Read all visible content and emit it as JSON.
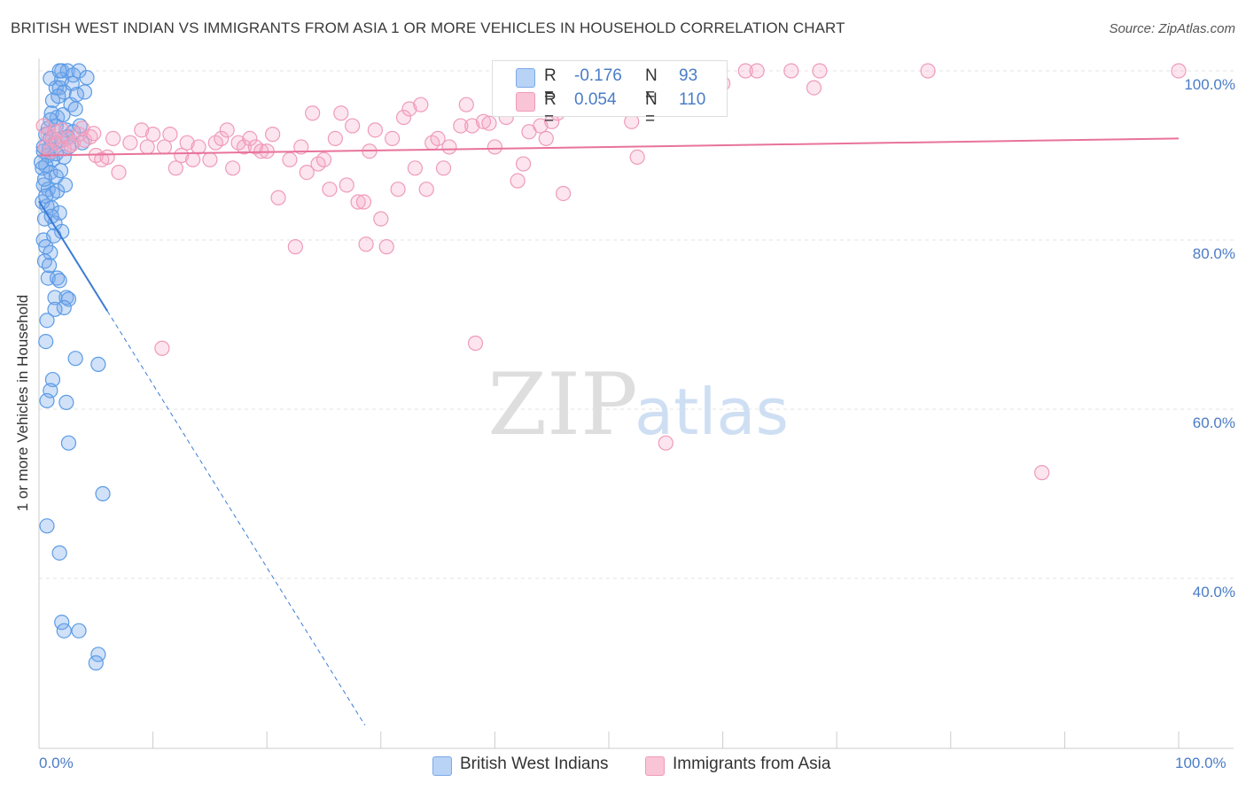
{
  "title": "BRITISH WEST INDIAN VS IMMIGRANTS FROM ASIA 1 OR MORE VEHICLES IN HOUSEHOLD CORRELATION CHART",
  "source": "Source: ZipAtlas.com",
  "watermark": {
    "zip": "ZIP",
    "atlas": "atlas"
  },
  "colors": {
    "blue": "#5b9be6",
    "blue_line": "#3a7bd5",
    "pink": "#f0a0be",
    "pink_line": "#e8739a",
    "tick": "#4a7cc7",
    "grid": "#e3e3e3"
  },
  "legend": {
    "r_label": "R =",
    "n_label": "N =",
    "series": [
      {
        "name": "British West Indians",
        "r": "-0.176",
        "n": "93"
      },
      {
        "name": "Immigrants from Asia",
        "r": "0.054",
        "n": "110"
      }
    ]
  },
  "chart_data": {
    "type": "scatter",
    "title": "BRITISH WEST INDIAN VS IMMIGRANTS FROM ASIA 1 OR MORE VEHICLES IN HOUSEHOLD CORRELATION CHART",
    "xlabel": "",
    "ylabel": "1 or more Vehicles in Household",
    "xlim": [
      0,
      100
    ],
    "ylim": [
      20,
      103
    ],
    "x_tick_labels": [
      "0.0%",
      "100.0%"
    ],
    "y_ticks": [
      40,
      60,
      80,
      100
    ],
    "y_tick_labels": [
      "40.0%",
      "60.0%",
      "80.0%",
      "100.0%"
    ],
    "series": [
      {
        "name": "British West Indians",
        "color": "#5b9be6",
        "trend": {
          "x0": 0,
          "y0": 84.6,
          "x1": 6,
          "y1": 71.6,
          "dash_x_end": 28.6
        },
        "points": [
          [
            1.0,
            99.1
          ],
          [
            1.5,
            98.0
          ],
          [
            2.0,
            100.0
          ],
          [
            2.5,
            100.0
          ],
          [
            3.0,
            99.5
          ],
          [
            3.5,
            100.0
          ],
          [
            4.0,
            97.5
          ],
          [
            2.0,
            99.0
          ],
          [
            1.2,
            96.5
          ],
          [
            1.8,
            98.0
          ],
          [
            2.2,
            97.5
          ],
          [
            2.8,
            96.0
          ],
          [
            3.2,
            95.5
          ],
          [
            1.6,
            94.5
          ],
          [
            2.4,
            93.0
          ],
          [
            3.6,
            93.5
          ],
          [
            0.6,
            92.5
          ],
          [
            1.0,
            92.0
          ],
          [
            1.4,
            91.5
          ],
          [
            2.0,
            91.8
          ],
          [
            0.4,
            90.5
          ],
          [
            0.8,
            90.0
          ],
          [
            1.2,
            89.5
          ],
          [
            2.2,
            89.8
          ],
          [
            0.3,
            88.5
          ],
          [
            0.6,
            88.8
          ],
          [
            1.0,
            88.0
          ],
          [
            1.5,
            87.5
          ],
          [
            0.4,
            86.5
          ],
          [
            0.8,
            86.0
          ],
          [
            1.2,
            85.5
          ],
          [
            1.6,
            85.8
          ],
          [
            0.3,
            84.5
          ],
          [
            0.7,
            84.0
          ],
          [
            1.1,
            83.8
          ],
          [
            1.8,
            83.2
          ],
          [
            0.5,
            82.5
          ],
          [
            1.4,
            82.0
          ],
          [
            2.0,
            81.0
          ],
          [
            0.4,
            80.0
          ],
          [
            0.6,
            79.2
          ],
          [
            1.0,
            78.5
          ],
          [
            0.5,
            77.5
          ],
          [
            0.8,
            75.5
          ],
          [
            1.6,
            75.5
          ],
          [
            1.8,
            75.2
          ],
          [
            1.4,
            73.2
          ],
          [
            2.4,
            73.2
          ],
          [
            2.6,
            73.0
          ],
          [
            2.2,
            72.0
          ],
          [
            1.4,
            71.8
          ],
          [
            0.7,
            70.5
          ],
          [
            0.6,
            68.0
          ],
          [
            3.2,
            66.0
          ],
          [
            5.2,
            65.3
          ],
          [
            1.2,
            63.5
          ],
          [
            1.0,
            62.2
          ],
          [
            0.7,
            61.0
          ],
          [
            2.4,
            60.8
          ],
          [
            2.6,
            56.0
          ],
          [
            5.6,
            50.0
          ],
          [
            0.7,
            46.2
          ],
          [
            1.8,
            43.0
          ],
          [
            2.0,
            34.8
          ],
          [
            2.2,
            33.8
          ],
          [
            3.5,
            33.8
          ],
          [
            5.2,
            31.0
          ],
          [
            5.0,
            30.0
          ],
          [
            1.5,
            93.5
          ],
          [
            2.5,
            92.2
          ],
          [
            0.9,
            90.8
          ],
          [
            1.9,
            88.2
          ],
          [
            2.3,
            86.5
          ],
          [
            0.5,
            87.2
          ],
          [
            1.3,
            80.5
          ],
          [
            0.9,
            77.0
          ],
          [
            3.0,
            92.8
          ],
          [
            1.1,
            95.0
          ],
          [
            4.2,
            99.2
          ],
          [
            2.9,
            98.5
          ],
          [
            1.7,
            97.0
          ],
          [
            0.8,
            93.2
          ],
          [
            2.1,
            94.8
          ],
          [
            3.8,
            91.5
          ],
          [
            0.2,
            89.2
          ],
          [
            1.5,
            90.2
          ],
          [
            0.6,
            85.2
          ],
          [
            1.1,
            82.8
          ],
          [
            2.6,
            91.0
          ],
          [
            1.0,
            94.2
          ],
          [
            3.3,
            97.2
          ],
          [
            0.4,
            91.0
          ],
          [
            1.8,
            100.0
          ]
        ]
      },
      {
        "name": "Immigrants from Asia",
        "color": "#f0a0be",
        "trend": {
          "x0": 0,
          "y0": 90.0,
          "x1": 100,
          "y1": 92.0
        },
        "points": [
          [
            0.4,
            93.5
          ],
          [
            0.8,
            92.5
          ],
          [
            1.2,
            92.0
          ],
          [
            1.6,
            91.5
          ],
          [
            2.0,
            93.0
          ],
          [
            2.5,
            92.0
          ],
          [
            3.0,
            91.5
          ],
          [
            3.5,
            92.5
          ],
          [
            4.0,
            91.8
          ],
          [
            4.5,
            92.2
          ],
          [
            0.6,
            91.0
          ],
          [
            1.0,
            90.5
          ],
          [
            2.2,
            90.8
          ],
          [
            5.0,
            90.0
          ],
          [
            5.5,
            89.5
          ],
          [
            6.5,
            92.0
          ],
          [
            7.0,
            88.0
          ],
          [
            8.0,
            91.5
          ],
          [
            9.0,
            93.0
          ],
          [
            9.5,
            91.0
          ],
          [
            10.0,
            92.5
          ],
          [
            11.0,
            91.0
          ],
          [
            11.5,
            92.5
          ],
          [
            12.0,
            88.5
          ],
          [
            12.5,
            90.0
          ],
          [
            13.0,
            91.5
          ],
          [
            13.5,
            89.5
          ],
          [
            14.0,
            91.0
          ],
          [
            15.0,
            89.5
          ],
          [
            15.5,
            91.5
          ],
          [
            16.0,
            92.0
          ],
          [
            16.5,
            93.0
          ],
          [
            17.0,
            88.5
          ],
          [
            17.5,
            91.5
          ],
          [
            18.0,
            91.0
          ],
          [
            18.5,
            92.0
          ],
          [
            19.0,
            91.0
          ],
          [
            19.5,
            90.5
          ],
          [
            20.0,
            90.5
          ],
          [
            20.5,
            92.5
          ],
          [
            21.0,
            85.0
          ],
          [
            22.0,
            89.5
          ],
          [
            22.5,
            79.2
          ],
          [
            23.0,
            91.0
          ],
          [
            23.5,
            88.0
          ],
          [
            24.0,
            95.0
          ],
          [
            24.5,
            89.0
          ],
          [
            25.0,
            89.5
          ],
          [
            25.5,
            86.0
          ],
          [
            26.0,
            92.0
          ],
          [
            26.5,
            95.0
          ],
          [
            27.0,
            86.5
          ],
          [
            27.5,
            93.5
          ],
          [
            28.0,
            84.5
          ],
          [
            28.5,
            84.5
          ],
          [
            28.7,
            79.5
          ],
          [
            29.0,
            90.5
          ],
          [
            29.5,
            93.0
          ],
          [
            30.0,
            82.5
          ],
          [
            30.5,
            79.2
          ],
          [
            31.0,
            92.0
          ],
          [
            31.5,
            86.0
          ],
          [
            32.0,
            94.5
          ],
          [
            32.5,
            95.5
          ],
          [
            33.0,
            88.5
          ],
          [
            33.5,
            96.0
          ],
          [
            34.0,
            86.0
          ],
          [
            34.5,
            91.5
          ],
          [
            35.0,
            92.0
          ],
          [
            35.5,
            88.5
          ],
          [
            36.0,
            91.0
          ],
          [
            37.0,
            93.5
          ],
          [
            37.5,
            96.0
          ],
          [
            38.0,
            93.5
          ],
          [
            38.3,
            67.8
          ],
          [
            39.0,
            94.0
          ],
          [
            39.5,
            93.8
          ],
          [
            40.0,
            91.0
          ],
          [
            40.5,
            97.0
          ],
          [
            41.0,
            94.5
          ],
          [
            42.0,
            87.0
          ],
          [
            42.5,
            89.0
          ],
          [
            43.0,
            92.8
          ],
          [
            43.5,
            96.0
          ],
          [
            44.0,
            93.5
          ],
          [
            44.5,
            92.0
          ],
          [
            45.0,
            94.0
          ],
          [
            45.5,
            95.0
          ],
          [
            46.0,
            85.5
          ],
          [
            47.0,
            96.5
          ],
          [
            48.0,
            100.0
          ],
          [
            49.0,
            99.5
          ],
          [
            52.0,
            94.0
          ],
          [
            52.5,
            89.8
          ],
          [
            54.0,
            100.0
          ],
          [
            55.0,
            56.0
          ],
          [
            57.0,
            100.0
          ],
          [
            60.0,
            98.5
          ],
          [
            62.0,
            100.0
          ],
          [
            63.0,
            100.0
          ],
          [
            66.0,
            100.0
          ],
          [
            68.0,
            98.0
          ],
          [
            68.5,
            100.0
          ],
          [
            78.0,
            100.0
          ],
          [
            88.0,
            52.5
          ],
          [
            100.0,
            100.0
          ],
          [
            1.4,
            92.8
          ],
          [
            6.0,
            89.8
          ],
          [
            2.8,
            91.2
          ],
          [
            10.8,
            67.2
          ],
          [
            3.8,
            93.2
          ],
          [
            4.8,
            92.6
          ]
        ]
      }
    ]
  }
}
